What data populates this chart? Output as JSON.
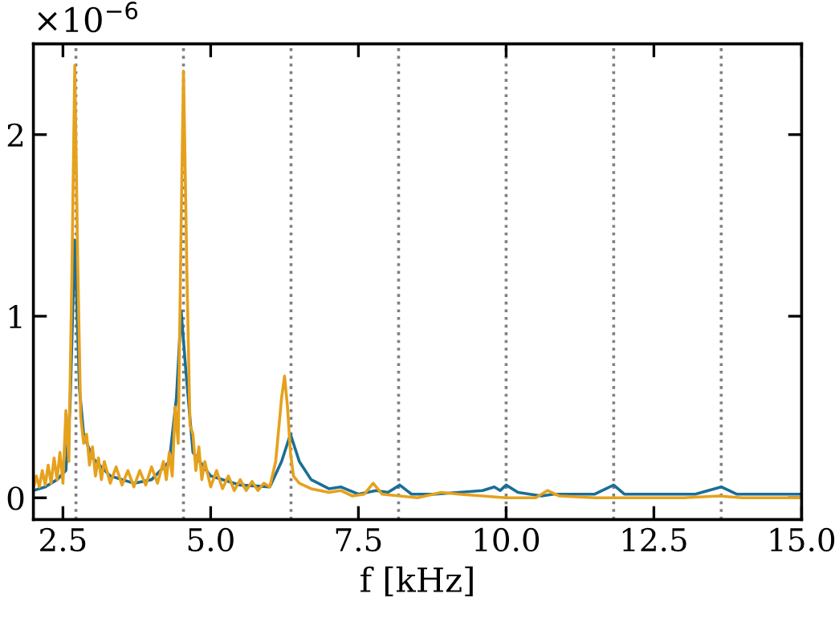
{
  "chart_data": {
    "type": "line",
    "xlabel": "f [kHz]",
    "annotations": [
      "×10$^{−6}$"
    ],
    "xlim": [
      2,
      15
    ],
    "xticks": [
      {
        "value": 2.5,
        "label": "2.5"
      },
      {
        "value": 5.0,
        "label": "5.0"
      },
      {
        "value": 7.5,
        "label": "7.5"
      },
      {
        "value": 10.0,
        "label": "10.0"
      },
      {
        "value": 12.5,
        "label": "12.5"
      },
      {
        "value": 15.0,
        "label": "15.0"
      }
    ],
    "ylim": [
      -0.12,
      2.5
    ],
    "yticks": [
      0,
      1,
      2
    ],
    "grid": false,
    "legend": false,
    "line_style": "solid",
    "marker": "none",
    "ref_lines": [
      {
        "axis": "x",
        "value": 2.72,
        "color": "#808080",
        "line_style": "dotted"
      },
      {
        "axis": "x",
        "value": 4.54,
        "color": "#808080",
        "line_style": "dotted"
      },
      {
        "axis": "x",
        "value": 6.36,
        "color": "#808080",
        "line_style": "dotted"
      },
      {
        "axis": "x",
        "value": 8.18,
        "color": "#808080",
        "line_style": "dotted"
      },
      {
        "axis": "x",
        "value": 10.0,
        "color": "#808080",
        "line_style": "dotted"
      },
      {
        "axis": "x",
        "value": 11.82,
        "color": "#808080",
        "line_style": "dotted"
      },
      {
        "axis": "x",
        "value": 13.64,
        "color": "#808080",
        "line_style": "dotted"
      }
    ],
    "series": [
      {
        "color": "#1b6e96",
        "x": [
          2.0,
          2.2,
          2.4,
          2.55,
          2.62,
          2.7,
          2.78,
          2.85,
          3.0,
          3.3,
          3.7,
          4.0,
          4.3,
          4.42,
          4.5,
          4.58,
          4.7,
          5.0,
          5.5,
          6.0,
          6.2,
          6.35,
          6.5,
          6.7,
          7.0,
          7.2,
          7.5,
          7.8,
          8.0,
          8.2,
          8.4,
          8.8,
          9.2,
          9.6,
          9.8,
          9.9,
          10.0,
          10.2,
          10.6,
          10.8,
          11.5,
          11.82,
          12.0,
          12.5,
          13.2,
          13.64,
          13.9,
          14.5,
          15.0
        ],
        "values": [
          0.04,
          0.06,
          0.1,
          0.15,
          0.5,
          1.42,
          0.6,
          0.35,
          0.22,
          0.12,
          0.08,
          0.1,
          0.2,
          0.55,
          1.03,
          0.7,
          0.25,
          0.12,
          0.07,
          0.06,
          0.2,
          0.35,
          0.2,
          0.1,
          0.05,
          0.06,
          0.02,
          0.04,
          0.03,
          0.07,
          0.02,
          0.02,
          0.03,
          0.04,
          0.06,
          0.04,
          0.07,
          0.03,
          0.01,
          0.02,
          0.02,
          0.07,
          0.02,
          0.02,
          0.02,
          0.06,
          0.02,
          0.02,
          0.02
        ]
      },
      {
        "color": "#e6a11c",
        "x": [
          2.0,
          2.05,
          2.1,
          2.15,
          2.2,
          2.25,
          2.3,
          2.35,
          2.4,
          2.45,
          2.5,
          2.55,
          2.6,
          2.65,
          2.7,
          2.75,
          2.8,
          2.85,
          2.9,
          2.95,
          3.0,
          3.05,
          3.1,
          3.15,
          3.2,
          3.3,
          3.4,
          3.5,
          3.6,
          3.7,
          3.8,
          3.9,
          4.0,
          4.1,
          4.2,
          4.25,
          4.3,
          4.35,
          4.4,
          4.45,
          4.5,
          4.54,
          4.6,
          4.65,
          4.7,
          4.75,
          4.8,
          4.85,
          4.9,
          5.0,
          5.1,
          5.2,
          5.3,
          5.4,
          5.5,
          5.6,
          5.7,
          5.8,
          5.9,
          6.0,
          6.1,
          6.2,
          6.25,
          6.3,
          6.35,
          6.4,
          6.5,
          6.7,
          7.0,
          7.2,
          7.4,
          7.6,
          7.75,
          7.9,
          8.2,
          8.5,
          8.9,
          9.2,
          9.6,
          10.0,
          10.5,
          10.7,
          10.9,
          11.5,
          12.0,
          12.5,
          13.0,
          13.6,
          14.0,
          15.0
        ],
        "values": [
          0.05,
          0.12,
          0.06,
          0.15,
          0.07,
          0.18,
          0.08,
          0.22,
          0.1,
          0.25,
          0.08,
          0.48,
          0.2,
          1.2,
          2.38,
          1.3,
          0.45,
          0.3,
          0.35,
          0.18,
          0.28,
          0.12,
          0.22,
          0.1,
          0.2,
          0.08,
          0.17,
          0.07,
          0.15,
          0.06,
          0.15,
          0.07,
          0.17,
          0.08,
          0.2,
          0.1,
          0.25,
          0.12,
          0.5,
          0.3,
          1.5,
          2.35,
          1.2,
          0.4,
          0.35,
          0.15,
          0.28,
          0.1,
          0.2,
          0.06,
          0.15,
          0.05,
          0.12,
          0.04,
          0.1,
          0.04,
          0.09,
          0.04,
          0.08,
          0.06,
          0.2,
          0.55,
          0.67,
          0.5,
          0.25,
          0.12,
          0.08,
          0.05,
          0.03,
          0.04,
          0.01,
          0.02,
          0.08,
          0.02,
          0.01,
          0.0,
          0.03,
          0.02,
          0.01,
          0.0,
          0.0,
          0.04,
          0.01,
          0.0,
          0.0,
          0.0,
          0.0,
          0.01,
          0.0,
          0.0
        ]
      }
    ]
  }
}
